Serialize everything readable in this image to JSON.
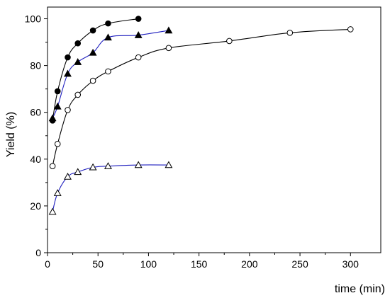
{
  "chart_data": {
    "type": "scatter",
    "xlabel": "time (min)",
    "ylabel": "Yield (%)",
    "xlim": [
      0,
      330
    ],
    "ylim": [
      0,
      105
    ],
    "x_ticks": [
      0,
      50,
      100,
      150,
      200,
      250,
      300
    ],
    "y_ticks": [
      0,
      20,
      40,
      60,
      80,
      100
    ],
    "grid": false,
    "series": [
      {
        "marker": "filled-circle",
        "line_color": "#000000",
        "x": [
          5,
          10,
          20,
          30,
          45,
          60,
          90
        ],
        "y": [
          56.5,
          69,
          83.5,
          89.5,
          95,
          98,
          100
        ]
      },
      {
        "marker": "filled-triangle",
        "line_color": "#1f1fbf",
        "x": [
          5,
          10,
          20,
          30,
          45,
          60,
          90,
          120
        ],
        "y": [
          57.5,
          62.5,
          76.5,
          81.5,
          85.5,
          92,
          93,
          95
        ]
      },
      {
        "marker": "open-circle",
        "line_color": "#000000",
        "x": [
          5,
          10,
          20,
          30,
          45,
          60,
          90,
          120,
          180,
          240,
          300
        ],
        "y": [
          37,
          46.5,
          61,
          67.5,
          73.5,
          77.5,
          83.5,
          87.5,
          90.5,
          94,
          95.5
        ]
      },
      {
        "marker": "open-triangle",
        "line_color": "#1f1fbf",
        "x": [
          5,
          10,
          20,
          30,
          45,
          60,
          90,
          120
        ],
        "y": [
          17.5,
          25.5,
          32.5,
          34.5,
          36.5,
          37,
          37.5,
          37.5
        ]
      }
    ]
  }
}
